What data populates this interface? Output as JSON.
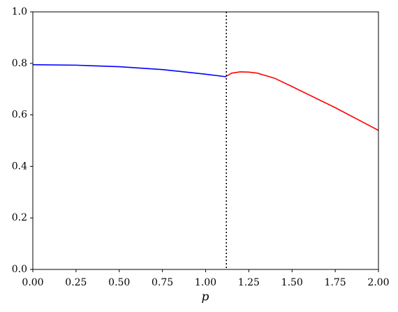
{
  "chart_data": {
    "type": "line",
    "x_label": "p",
    "xlim": [
      0,
      2
    ],
    "ylim": [
      0,
      1
    ],
    "xticks": [
      {
        "value": 0,
        "label": "0.00"
      },
      {
        "value": 0.25,
        "label": "0.25"
      },
      {
        "value": 0.5,
        "label": "0.50"
      },
      {
        "value": 0.75,
        "label": "0.75"
      },
      {
        "value": 1,
        "label": "1.00"
      },
      {
        "value": 1.25,
        "label": "1.25"
      },
      {
        "value": 1.5,
        "label": "1.50"
      },
      {
        "value": 1.75,
        "label": "1.75"
      },
      {
        "value": 2,
        "label": "2.00"
      }
    ],
    "yticks": [
      {
        "value": 0,
        "label": "0.0"
      },
      {
        "value": 0.2,
        "label": "0.2"
      },
      {
        "value": 0.4,
        "label": "0.4"
      },
      {
        "value": 0.6,
        "label": "0.6"
      },
      {
        "value": 0.8,
        "label": "0.8"
      },
      {
        "value": 1,
        "label": "1.0"
      }
    ],
    "vline": 1.12,
    "vline_color": "#000000",
    "series": [
      {
        "color": "#0000ff",
        "x": [
          0,
          0.25,
          0.5,
          0.75,
          1.0,
          1.12
        ],
        "values": [
          0.795,
          0.793,
          0.787,
          0.776,
          0.758,
          0.748
        ]
      },
      {
        "color": "#ff0000",
        "x": [
          1.12,
          1.15,
          1.2,
          1.25,
          1.3,
          1.4,
          1.5,
          1.75,
          2.0
        ],
        "values": [
          0.75,
          0.762,
          0.767,
          0.766,
          0.762,
          0.742,
          0.71,
          0.628,
          0.54
        ]
      }
    ]
  }
}
